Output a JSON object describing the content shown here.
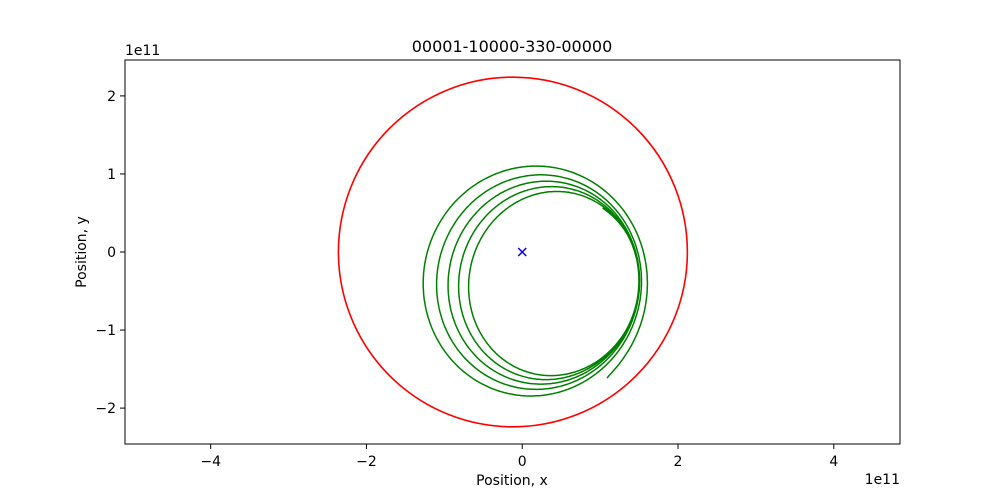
{
  "chart_data": {
    "type": "scatter",
    "title": "00001-10000-330-00000",
    "xlabel": "Position, x",
    "ylabel": "Position, y",
    "x_offset_text": "1e11",
    "y_offset_text": "1e11",
    "xlim": [
      -5.1,
      4.85
    ],
    "ylim": [
      -2.46,
      2.46
    ],
    "xticks": [
      -4,
      -2,
      0,
      2,
      4
    ],
    "yticks": [
      -2,
      -1,
      0,
      1,
      2
    ],
    "xtick_labels": [
      "−4",
      "−2",
      "0",
      "2",
      "4"
    ],
    "ytick_labels": [
      "−2",
      "−1",
      "0",
      "1",
      "2"
    ],
    "grid": false,
    "series": [
      {
        "kind": "ellipse-orbit",
        "color": "#ff0000",
        "center": [
          -0.12,
          0.0
        ],
        "radius_x": 2.24,
        "radius_y": 2.24
      },
      {
        "kind": "precessing-orbit",
        "color": "#008000",
        "center_start": [
          0.1,
          -0.4
        ],
        "center_end": [
          0.45,
          -0.42
        ],
        "radius_x_start": 1.55,
        "radius_x_end": 1.05,
        "radius_y_start": 1.6,
        "radius_y_end": 1.15,
        "turns": 5.3,
        "start_angle_deg": -35,
        "tilt_deg": -15
      },
      {
        "kind": "marker",
        "marker": "x",
        "color": "#0000ff",
        "points": [
          [
            0,
            0
          ]
        ]
      }
    ]
  }
}
